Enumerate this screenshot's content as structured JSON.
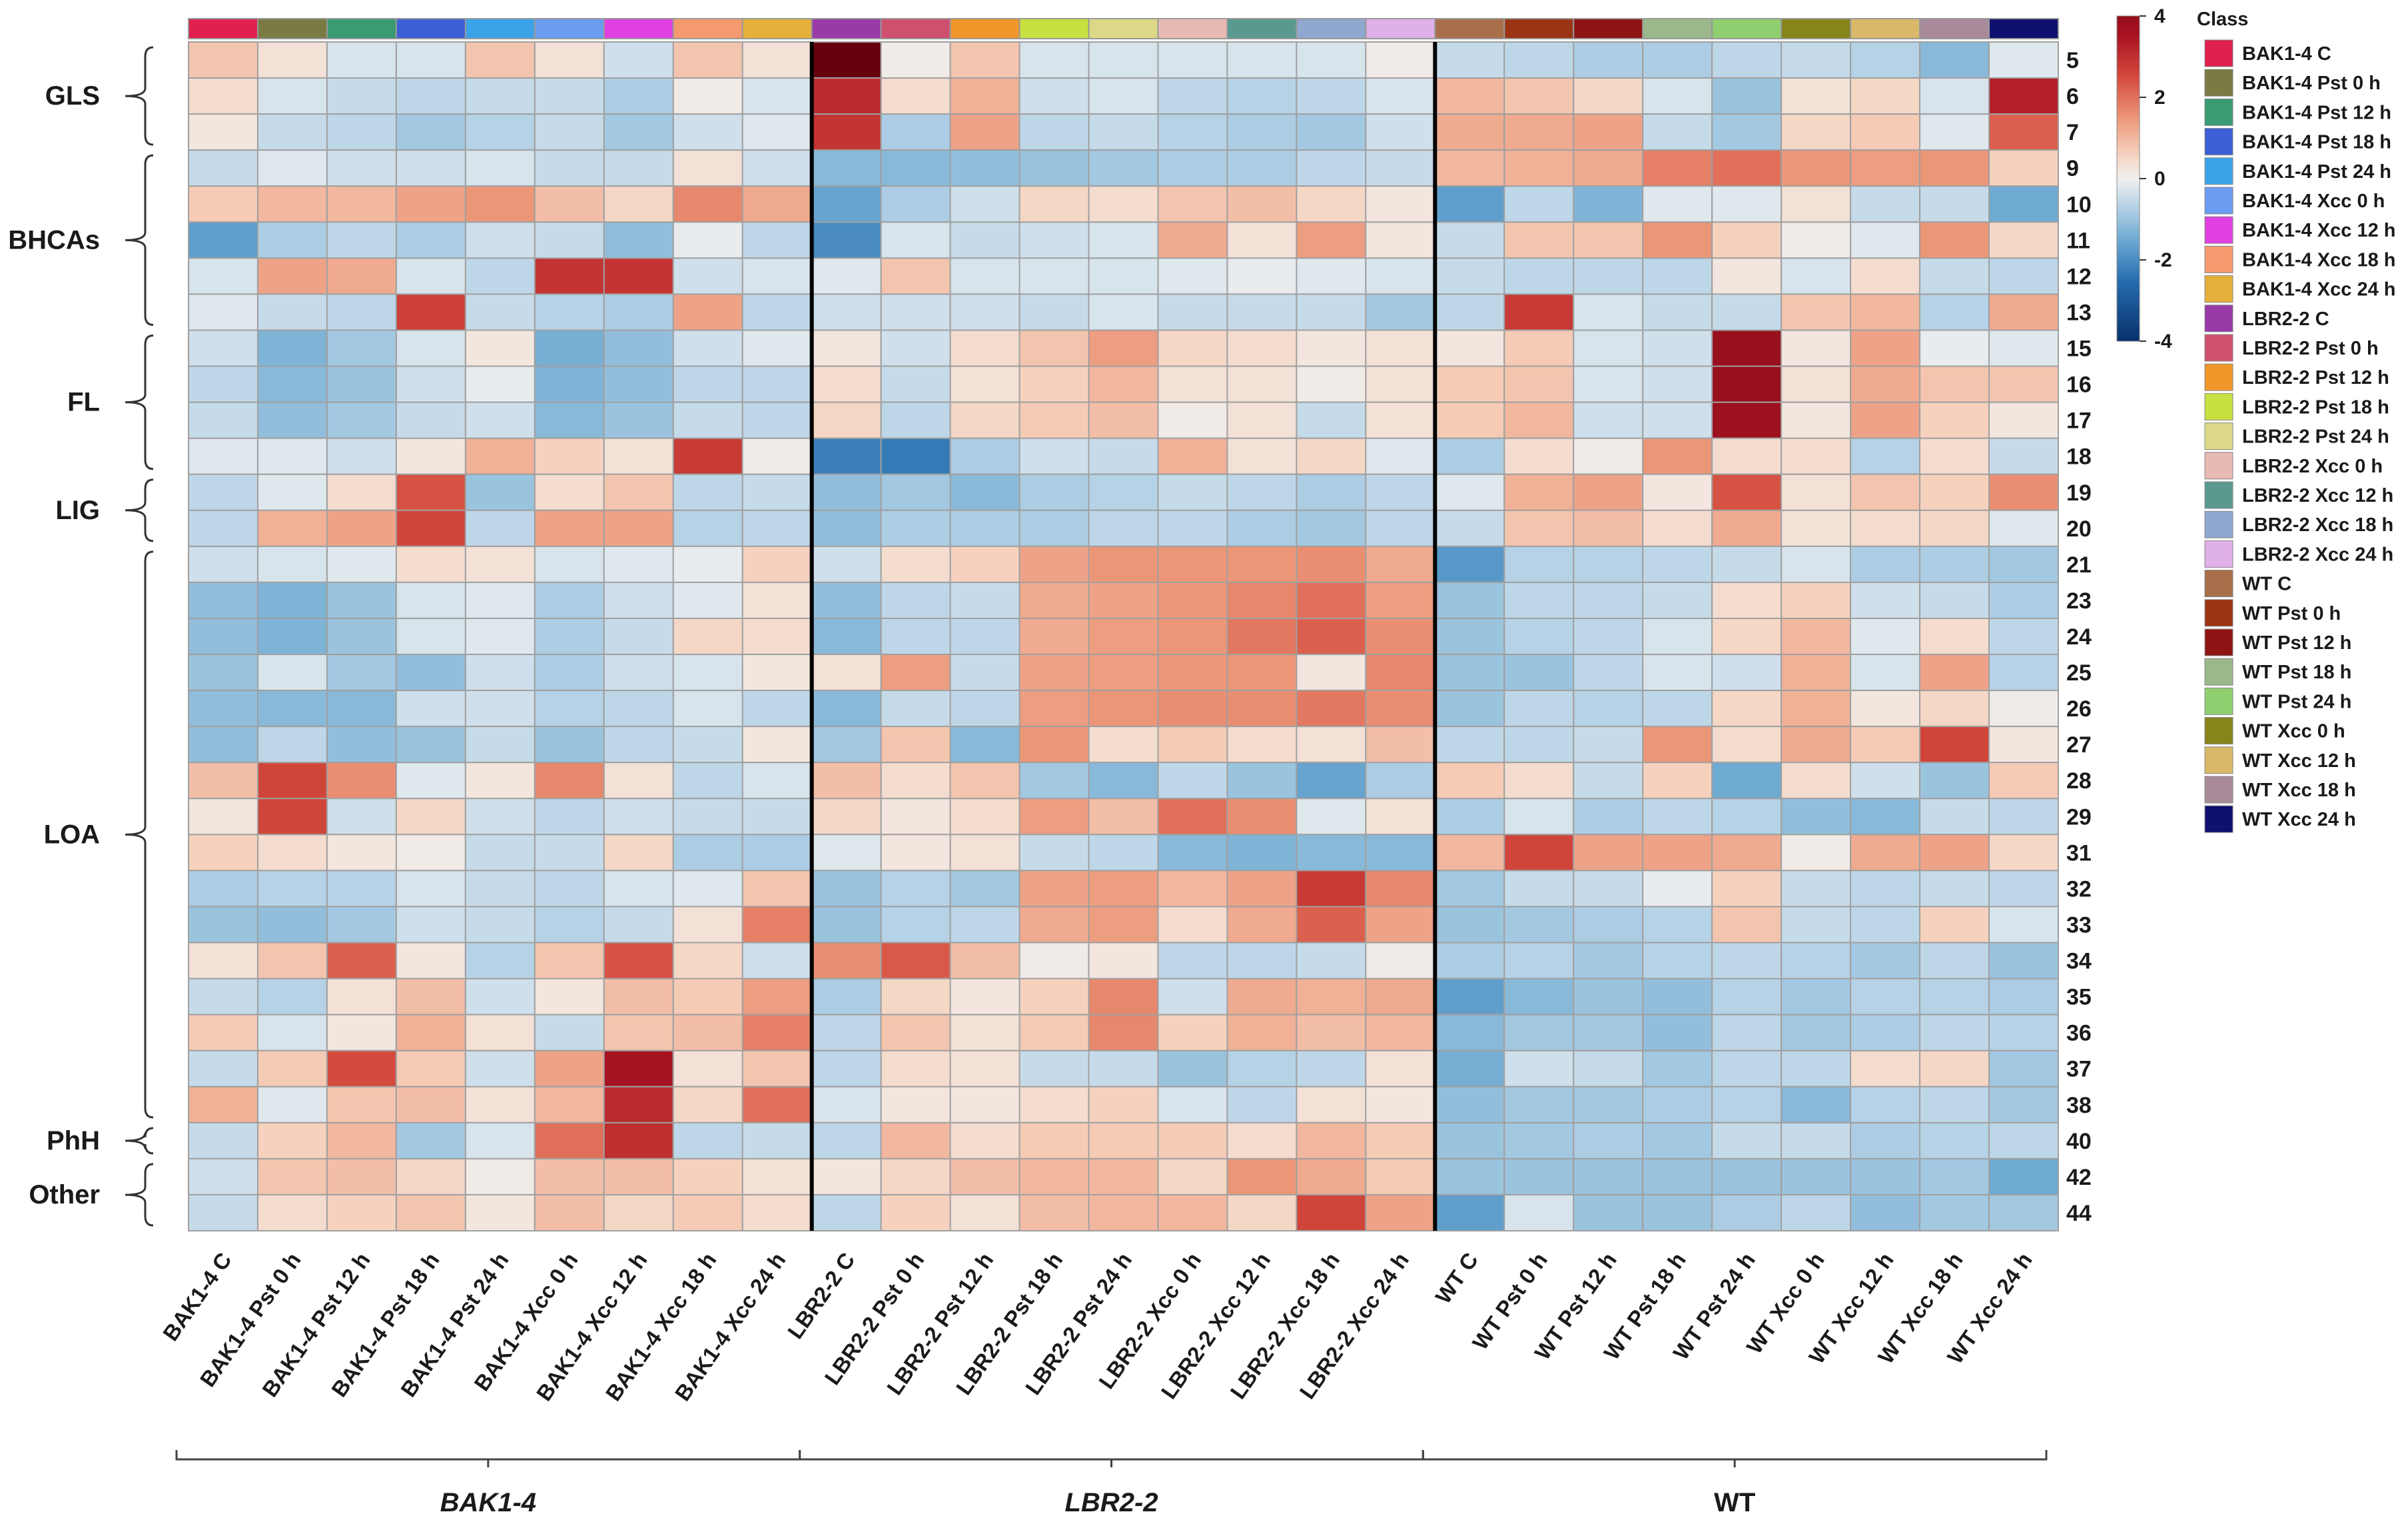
{
  "chart_data": {
    "type": "heatmap",
    "title": "",
    "columns": [
      "BAK1-4 C",
      "BAK1-4 Pst 0 h",
      "BAK1-4 Pst 12 h",
      "BAK1-4 Pst 18 h",
      "BAK1-4 Pst 24 h",
      "BAK1-4 Xcc 0 h",
      "BAK1-4 Xcc 12 h",
      "BAK1-4 Xcc 18 h",
      "BAK1-4 Xcc 24 h",
      "LBR2-2 C",
      "LBR2-2 Pst 0 h",
      "LBR2-2 Pst 12 h",
      "LBR2-2 Pst 18 h",
      "LBR2-2 Pst 24 h",
      "LBR2-2 Xcc 0 h",
      "LBR2-2 Xcc 12 h",
      "LBR2-2 Xcc 18 h",
      "LBR2-2 Xcc 24 h",
      "WT C",
      "WT Pst 0 h",
      "WT Pst 12 h",
      "WT Pst 18 h",
      "WT Pst 24 h",
      "WT Xcc 0 h",
      "WT Xcc 12 h",
      "WT Xcc 18 h",
      "WT Xcc 24 h"
    ],
    "rows": [
      "5",
      "6",
      "7",
      "9",
      "10",
      "11",
      "12",
      "13",
      "15",
      "16",
      "17",
      "18",
      "19",
      "20",
      "21",
      "23",
      "24",
      "25",
      "26",
      "27",
      "28",
      "29",
      "31",
      "32",
      "33",
      "34",
      "35",
      "36",
      "37",
      "38",
      "40",
      "42",
      "44"
    ],
    "values": [
      [
        0.8,
        0.3,
        -0.3,
        -0.3,
        0.8,
        0.3,
        -0.4,
        0.8,
        0.3,
        5.0,
        0.1,
        0.8,
        -0.3,
        -0.3,
        -0.3,
        -0.3,
        -0.3,
        0.1,
        -0.5,
        -0.6,
        -0.8,
        -0.8,
        -0.6,
        -0.5,
        -0.7,
        -1.2,
        -0.2
      ],
      [
        0.4,
        -0.3,
        -0.5,
        -0.6,
        -0.5,
        -0.5,
        -0.8,
        0.1,
        -0.3,
        3.1,
        0.4,
        1.1,
        -0.4,
        -0.3,
        -0.6,
        -0.7,
        -0.6,
        -0.3,
        1.0,
        0.8,
        0.5,
        -0.3,
        -1.0,
        0.3,
        0.5,
        -0.3,
        3.3
      ],
      [
        0.2,
        -0.5,
        -0.6,
        -0.9,
        -0.7,
        -0.5,
        -0.9,
        -0.4,
        -0.2,
        2.9,
        -0.8,
        1.3,
        -0.6,
        -0.5,
        -0.7,
        -0.8,
        -0.9,
        -0.4,
        1.2,
        1.2,
        1.3,
        -0.5,
        -0.9,
        0.5,
        0.7,
        -0.2,
        2.2
      ],
      [
        -0.5,
        -0.2,
        -0.4,
        -0.4,
        -0.3,
        -0.5,
        -0.5,
        0.3,
        -0.4,
        -1.2,
        -1.2,
        -1.1,
        -1.0,
        -0.9,
        -0.8,
        -0.8,
        -0.6,
        -0.5,
        1.0,
        1.1,
        1.2,
        1.8,
        2.0,
        1.5,
        1.4,
        1.5,
        0.6
      ],
      [
        0.7,
        1.0,
        1.0,
        1.3,
        1.5,
        0.9,
        0.5,
        1.7,
        1.2,
        -1.6,
        -0.8,
        -0.4,
        0.5,
        0.4,
        0.8,
        0.9,
        0.5,
        0.2,
        -1.7,
        -0.6,
        -1.3,
        -0.2,
        -0.2,
        0.3,
        -0.5,
        -0.5,
        -1.5
      ],
      [
        -1.7,
        -0.8,
        -0.6,
        -0.8,
        -0.4,
        -0.5,
        -1.1,
        -0.1,
        -0.6,
        -2.0,
        -0.3,
        -0.5,
        -0.4,
        -0.3,
        1.2,
        0.3,
        1.4,
        0.2,
        -0.5,
        0.8,
        0.8,
        1.5,
        0.6,
        0.1,
        -0.2,
        1.5,
        0.5
      ],
      [
        -0.3,
        1.3,
        1.2,
        -0.3,
        -0.6,
        2.9,
        2.9,
        -0.4,
        -0.3,
        -0.2,
        0.8,
        -0.3,
        -0.3,
        -0.3,
        -0.2,
        -0.1,
        -0.2,
        -0.3,
        -0.5,
        -0.6,
        -0.6,
        -0.6,
        0.2,
        -0.3,
        0.4,
        -0.5,
        -0.6
      ],
      [
        -0.2,
        -0.5,
        -0.6,
        2.7,
        -0.5,
        -0.7,
        -0.8,
        1.3,
        -0.6,
        -0.4,
        -0.4,
        -0.4,
        -0.5,
        -0.3,
        -0.5,
        -0.5,
        -0.5,
        -0.9,
        -0.6,
        2.8,
        -0.3,
        -0.5,
        -0.5,
        0.8,
        1.0,
        -0.7,
        1.2
      ],
      [
        -0.4,
        -1.3,
        -0.9,
        -0.3,
        0.2,
        -1.4,
        -1.1,
        -0.4,
        -0.2,
        0.2,
        -0.4,
        0.4,
        0.8,
        1.4,
        0.5,
        0.4,
        0.2,
        0.3,
        0.2,
        0.7,
        -0.3,
        -0.4,
        3.9,
        0.2,
        1.3,
        -0.1,
        -0.2
      ],
      [
        -0.6,
        -1.2,
        -1.0,
        -0.4,
        -0.1,
        -1.3,
        -1.1,
        -0.6,
        -0.6,
        0.4,
        -0.5,
        0.3,
        0.6,
        1.0,
        0.3,
        0.3,
        0.1,
        0.3,
        0.7,
        0.8,
        -0.3,
        -0.4,
        3.9,
        0.3,
        1.2,
        0.8,
        0.8
      ],
      [
        -0.5,
        -1.1,
        -0.9,
        -0.5,
        -0.4,
        -1.2,
        -1.0,
        -0.5,
        -0.6,
        0.5,
        -0.6,
        0.5,
        0.7,
        0.9,
        0.1,
        0.3,
        -0.5,
        0.3,
        0.7,
        1.0,
        -0.4,
        -0.4,
        3.8,
        0.2,
        1.3,
        0.6,
        0.2
      ],
      [
        -0.2,
        -0.2,
        -0.4,
        0.2,
        1.1,
        0.6,
        0.3,
        2.8,
        0.1,
        -2.2,
        -2.3,
        -0.8,
        -0.4,
        -0.5,
        1.1,
        0.3,
        0.5,
        -0.2,
        -0.8,
        0.4,
        0.1,
        1.5,
        0.4,
        0.4,
        -0.7,
        0.4,
        -0.5
      ],
      [
        -0.6,
        -0.2,
        0.4,
        2.4,
        -1.0,
        0.4,
        0.8,
        -0.6,
        -0.5,
        -1.1,
        -0.9,
        -1.2,
        -0.8,
        -0.7,
        -0.5,
        -0.6,
        -0.8,
        -0.6,
        -0.2,
        1.1,
        1.3,
        0.2,
        2.4,
        0.3,
        0.8,
        0.6,
        1.6
      ],
      [
        -0.6,
        1.1,
        1.3,
        2.6,
        -0.6,
        1.3,
        1.3,
        -0.7,
        -0.6,
        -1.1,
        -0.8,
        -0.8,
        -0.8,
        -0.6,
        -0.6,
        -0.8,
        -0.9,
        -0.6,
        -0.5,
        0.8,
        0.9,
        0.4,
        1.2,
        0.3,
        0.4,
        0.5,
        -0.2
      ],
      [
        -0.4,
        -0.3,
        -0.2,
        0.4,
        0.3,
        -0.3,
        -0.2,
        -0.1,
        0.6,
        -0.4,
        0.4,
        0.6,
        1.3,
        1.5,
        1.5,
        1.5,
        1.6,
        1.2,
        -1.8,
        -0.7,
        -0.7,
        -0.6,
        -0.5,
        -0.3,
        -0.8,
        -0.8,
        -0.9
      ],
      [
        -1.1,
        -1.3,
        -1.0,
        -0.3,
        -0.2,
        -0.8,
        -0.4,
        -0.2,
        0.3,
        -1.1,
        -0.6,
        -0.5,
        1.2,
        1.3,
        1.5,
        1.7,
        2.0,
        1.4,
        -1.0,
        -0.6,
        -0.6,
        -0.5,
        0.4,
        0.6,
        -0.4,
        -0.5,
        -0.8
      ],
      [
        -1.1,
        -1.3,
        -1.0,
        -0.3,
        -0.2,
        -0.8,
        -0.5,
        0.5,
        0.4,
        -1.2,
        -0.6,
        -0.6,
        1.2,
        1.4,
        1.5,
        1.9,
        2.2,
        1.6,
        -1.0,
        -0.7,
        -0.6,
        -0.3,
        0.5,
        1.0,
        -0.2,
        0.4,
        -0.6
      ],
      [
        -1.0,
        -0.3,
        -0.9,
        -1.1,
        -0.4,
        -0.8,
        -0.4,
        -0.3,
        0.2,
        0.3,
        1.4,
        -0.5,
        1.3,
        1.4,
        1.5,
        1.5,
        0.2,
        1.7,
        -1.0,
        -1.0,
        -0.6,
        -0.3,
        -0.4,
        1.1,
        -0.3,
        1.3,
        -0.7
      ],
      [
        -1.1,
        -1.2,
        -1.2,
        -0.4,
        -0.4,
        -0.7,
        -0.6,
        -0.3,
        -0.6,
        -1.2,
        -0.5,
        -0.6,
        1.4,
        1.5,
        1.6,
        1.6,
        1.9,
        1.6,
        -1.0,
        -0.6,
        -0.7,
        -0.6,
        0.5,
        1.1,
        0.2,
        0.5,
        0.1
      ],
      [
        -1.1,
        -0.6,
        -1.1,
        -1.0,
        -0.5,
        -1.0,
        -0.6,
        -0.5,
        0.2,
        -0.9,
        0.8,
        -1.2,
        1.5,
        0.4,
        0.7,
        0.4,
        0.3,
        0.9,
        -0.6,
        -0.6,
        -0.5,
        1.5,
        0.4,
        1.2,
        0.7,
        2.6,
        0.2
      ],
      [
        0.9,
        2.6,
        1.6,
        -0.2,
        0.2,
        1.7,
        0.3,
        -0.6,
        -0.3,
        0.9,
        0.4,
        0.8,
        -0.9,
        -1.2,
        -0.6,
        -1.0,
        -1.6,
        -0.8,
        0.7,
        0.4,
        -0.5,
        0.6,
        -1.5,
        0.4,
        -0.4,
        -1.0,
        0.7
      ],
      [
        0.2,
        2.6,
        -0.4,
        0.5,
        -0.4,
        -0.6,
        -0.4,
        -0.5,
        -0.5,
        0.5,
        0.2,
        0.4,
        1.4,
        0.9,
        2.0,
        1.6,
        -0.2,
        0.3,
        -0.8,
        -0.3,
        -0.8,
        -0.6,
        -0.7,
        -1.1,
        -1.2,
        -0.5,
        -0.6
      ],
      [
        0.6,
        0.4,
        0.2,
        0.1,
        -0.5,
        -0.5,
        0.5,
        -0.8,
        -0.8,
        -0.2,
        0.2,
        0.3,
        -0.5,
        -0.6,
        -1.2,
        -1.3,
        -1.2,
        -1.2,
        1.0,
        2.6,
        1.3,
        1.3,
        1.2,
        0.1,
        1.2,
        1.3,
        0.5
      ],
      [
        -0.8,
        -0.7,
        -0.7,
        -0.3,
        -0.5,
        -0.6,
        -0.3,
        -0.2,
        0.8,
        -1.0,
        -0.7,
        -0.9,
        1.3,
        1.4,
        1.0,
        1.3,
        2.8,
        1.7,
        -0.9,
        -0.5,
        -0.5,
        -0.1,
        0.6,
        -0.5,
        -0.6,
        -0.5,
        -0.6
      ],
      [
        -1.0,
        -1.1,
        -0.9,
        -0.4,
        -0.5,
        -0.7,
        -0.5,
        0.3,
        1.8,
        -1.0,
        -0.7,
        -0.6,
        1.2,
        1.4,
        0.4,
        1.2,
        2.2,
        1.3,
        -1.0,
        -0.9,
        -0.8,
        -0.7,
        0.8,
        -0.5,
        -0.6,
        0.6,
        -0.3
      ],
      [
        0.3,
        0.8,
        2.2,
        0.2,
        -0.7,
        0.8,
        2.4,
        0.5,
        -0.4,
        1.6,
        2.3,
        0.9,
        0.1,
        0.2,
        -0.6,
        -0.6,
        -0.5,
        0.1,
        -0.8,
        -0.7,
        -0.9,
        -0.7,
        -0.6,
        -0.7,
        -0.9,
        -0.6,
        -1.0
      ],
      [
        -0.5,
        -0.7,
        0.3,
        0.9,
        -0.4,
        0.2,
        0.9,
        0.7,
        1.4,
        -0.8,
        0.5,
        0.2,
        0.6,
        1.7,
        -0.4,
        1.2,
        1.1,
        1.2,
        -1.7,
        -1.2,
        -1.0,
        -1.1,
        -0.7,
        -0.9,
        -0.7,
        -0.7,
        -0.8
      ],
      [
        0.7,
        -0.3,
        0.2,
        1.1,
        0.3,
        -0.5,
        0.8,
        0.9,
        1.8,
        -0.6,
        0.8,
        0.3,
        0.7,
        1.7,
        0.6,
        1.1,
        0.9,
        1.0,
        -1.2,
        -0.9,
        -0.9,
        -1.1,
        -0.6,
        -0.9,
        -0.8,
        -0.6,
        -0.7
      ],
      [
        -0.5,
        0.7,
        2.5,
        0.7,
        -0.4,
        1.3,
        3.6,
        0.3,
        0.8,
        -0.6,
        0.4,
        0.3,
        -0.5,
        -0.5,
        -1.0,
        -0.7,
        -0.6,
        0.3,
        -1.4,
        -0.4,
        -0.5,
        -0.9,
        -0.6,
        -0.6,
        0.4,
        0.5,
        -0.9
      ],
      [
        1.1,
        -0.2,
        0.8,
        0.9,
        0.3,
        1.0,
        3.1,
        0.5,
        2.0,
        -0.3,
        0.2,
        0.2,
        0.4,
        0.6,
        -0.3,
        -0.6,
        0.3,
        0.2,
        -1.1,
        -0.9,
        -0.9,
        -0.8,
        -0.7,
        -1.2,
        -0.7,
        -0.6,
        -0.9
      ],
      [
        -0.5,
        0.6,
        1.0,
        -0.9,
        -0.3,
        2.0,
        3.0,
        -0.6,
        -0.5,
        -0.6,
        1.0,
        0.4,
        0.7,
        0.7,
        0.7,
        0.4,
        1.0,
        0.7,
        -1.0,
        -0.9,
        -0.8,
        -0.9,
        -0.5,
        -0.5,
        -0.8,
        -0.7,
        -0.6
      ],
      [
        -0.4,
        0.8,
        0.9,
        0.5,
        0.1,
        0.9,
        0.9,
        0.6,
        0.3,
        0.2,
        0.5,
        0.9,
        1.0,
        1.0,
        0.5,
        1.5,
        1.2,
        0.7,
        -1.0,
        -1.0,
        -1.0,
        -1.0,
        -1.0,
        -1.0,
        -1.0,
        -0.9,
        -1.5
      ],
      [
        -0.5,
        0.4,
        0.6,
        0.8,
        0.2,
        0.9,
        0.5,
        0.7,
        0.4,
        -0.6,
        0.6,
        0.3,
        0.9,
        1.0,
        1.0,
        0.5,
        2.6,
        1.3,
        -1.7,
        -0.3,
        -1.0,
        -1.0,
        -0.8,
        -0.6,
        -1.1,
        -0.9,
        -0.9
      ]
    ],
    "row_groups": [
      {
        "label": "GLS",
        "first": "5",
        "last": "7"
      },
      {
        "label": "BHCAs",
        "first": "9",
        "last": "13"
      },
      {
        "label": "FL",
        "first": "15",
        "last": "18"
      },
      {
        "label": "LIG",
        "first": "19",
        "last": "20"
      },
      {
        "label": "LOA",
        "first": "21",
        "last": "38"
      },
      {
        "label": "PhH",
        "first": "40",
        "last": "40"
      },
      {
        "label": "Other",
        "first": "42",
        "last": "44"
      }
    ],
    "column_groups": [
      {
        "label": "BAK1-4",
        "count": 9
      },
      {
        "label": "LBR2-2",
        "count": 9
      },
      {
        "label": "WT",
        "count": 9
      }
    ],
    "class_colors": [
      "#e0204f",
      "#7a7a45",
      "#3a9a72",
      "#3b5fd6",
      "#3aa3e8",
      "#6a9cf0",
      "#e040e0",
      "#f59a6e",
      "#e5b03a",
      "#9a3aa8",
      "#cf4f6e",
      "#f0962a",
      "#c8e040",
      "#dcd887",
      "#e8bab4",
      "#5a9a8e",
      "#90a8cf",
      "#e0b0e8",
      "#a86f4a",
      "#9a3414",
      "#8e1414",
      "#9ab88a",
      "#8fcf6f",
      "#86841a",
      "#d9b86a",
      "#a88a9a",
      "#101070"
    ],
    "legend": {
      "title": "Class",
      "position": "right"
    },
    "colorbar": {
      "ticks": [
        4,
        2,
        0,
        -2,
        -4
      ],
      "min": -4,
      "max": 4
    }
  }
}
